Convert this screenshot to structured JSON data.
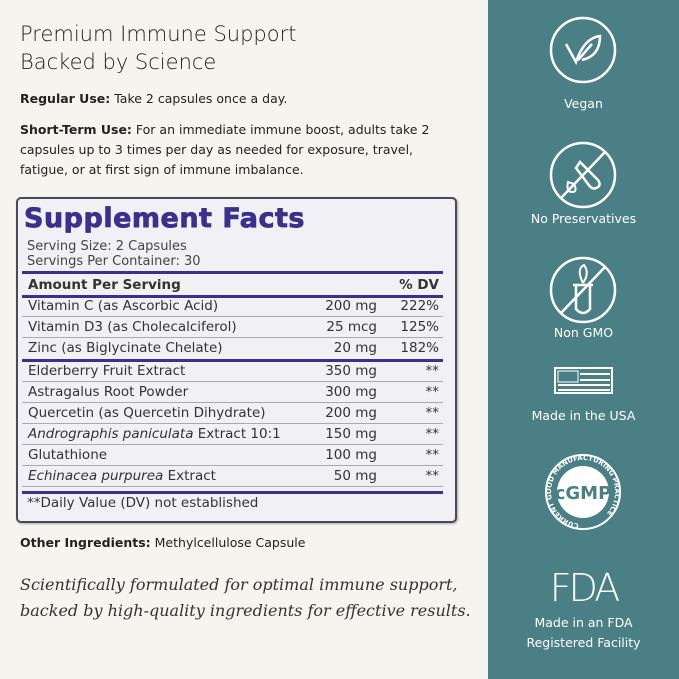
{
  "title_lines": [
    "Premium Immune Support",
    "Backed by Science"
  ],
  "regular_use": {
    "label": "Regular Use:",
    "text": " Take 2 capsules once a day."
  },
  "short_term_use": {
    "label": "Short-Term Use:",
    "text": " For an immediate immune boost, adults take 2 capsules up to 3 times per day as needed for exposure, travel, fatigue, or at first sign of immune imbalance."
  },
  "facts": {
    "title": "Supplement Facts",
    "serving_size": "Serving Size: 2 Capsules",
    "servings_per_container": "Servings Per Container: 30",
    "header_amount": "Amount Per Serving",
    "header_dv": "% DV",
    "rows": [
      {
        "name": "Vitamin C (as Ascorbic Acid)",
        "amount": "200 mg",
        "dv": "222%"
      },
      {
        "name": "Vitamin D3 (as Cholecalciferol)",
        "amount": "25 mcg",
        "dv": "125%"
      },
      {
        "name": "Zinc (as Biglycinate Chelate)",
        "amount": "20 mg",
        "dv": "182%"
      },
      {
        "name": "Elderberry Fruit Extract",
        "amount": "350 mg",
        "dv": "**"
      },
      {
        "name": "Astragalus Root Powder",
        "amount": "300 mg",
        "dv": "**"
      },
      {
        "name": "Quercetin (as Quercetin Dihydrate)",
        "amount": "200 mg",
        "dv": "**"
      },
      {
        "italic": "Andrographis paniculata",
        "name": " Extract 10:1",
        "amount": "150 mg",
        "dv": "**"
      },
      {
        "name": "Glutathione",
        "amount": "100 mg",
        "dv": "**"
      },
      {
        "italic": "Echinacea purpurea",
        "name": " Extract",
        "amount": "50 mg",
        "dv": "**"
      }
    ],
    "footnote": "**Daily Value (DV) not established"
  },
  "other_ingredients": {
    "label": "Other Ingredients:",
    "text": " Methylcellulose Capsule"
  },
  "tagline": "Scientifically formulated for optimal immune support, backed by high-quality ingredients for effective results.",
  "badges": {
    "vegan": "Vegan",
    "no_preservatives": "No Preservatives",
    "non_gmo": "Non GMO",
    "usa": "Made in the USA",
    "cgmp": "cGMP",
    "cgmp_ring": "CURRENT GOOD MANUFACTURING PRACTICE",
    "fda": "FDA",
    "fda_line1": "Made in an FDA",
    "fda_line2": "Registered Facility"
  },
  "colors": {
    "panel": "#4a7f86",
    "facts_title": "#3c2f8e",
    "background": "#f6f4ef"
  }
}
